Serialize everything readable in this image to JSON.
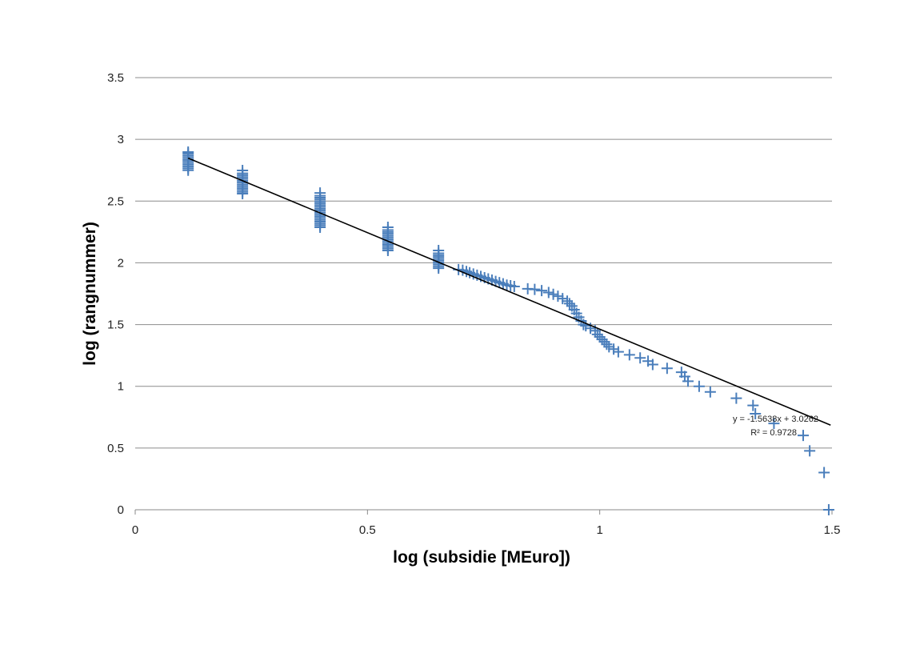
{
  "chart_data": {
    "type": "scatter",
    "title": "",
    "xlabel": "log (subsidie [MEuro])",
    "ylabel": "log (rangnummer)",
    "xlim": [
      0,
      1.5
    ],
    "ylim": [
      0,
      3.5
    ],
    "x_ticks": [
      "0",
      "0.5",
      "1",
      "1.5"
    ],
    "x_tick_values": [
      0,
      0.5,
      1,
      1.5
    ],
    "y_ticks": [
      "0",
      "0.5",
      "1",
      "1.5",
      "2",
      "2.5",
      "3",
      "3.5"
    ],
    "y_tick_values": [
      0,
      0.5,
      1,
      1.5,
      2,
      2.5,
      3,
      3.5
    ],
    "grid": "horizontal",
    "marker": "plus",
    "series_color": "#4a7ebb",
    "trendline_color": "#000000",
    "points": [
      [
        0.114,
        2.75
      ],
      [
        0.114,
        2.765
      ],
      [
        0.114,
        2.78
      ],
      [
        0.114,
        2.795
      ],
      [
        0.114,
        2.81
      ],
      [
        0.114,
        2.825
      ],
      [
        0.114,
        2.84
      ],
      [
        0.114,
        2.855
      ],
      [
        0.114,
        2.87
      ],
      [
        0.114,
        2.885
      ],
      [
        0.114,
        2.897
      ],
      [
        0.231,
        2.56
      ],
      [
        0.231,
        2.575
      ],
      [
        0.231,
        2.59
      ],
      [
        0.231,
        2.605
      ],
      [
        0.231,
        2.62
      ],
      [
        0.231,
        2.635
      ],
      [
        0.231,
        2.65
      ],
      [
        0.231,
        2.665
      ],
      [
        0.231,
        2.68
      ],
      [
        0.231,
        2.695
      ],
      [
        0.231,
        2.71
      ],
      [
        0.231,
        2.725
      ],
      [
        0.231,
        2.748
      ],
      [
        0.398,
        2.288
      ],
      [
        0.398,
        2.303
      ],
      [
        0.398,
        2.318
      ],
      [
        0.398,
        2.333
      ],
      [
        0.398,
        2.348
      ],
      [
        0.398,
        2.363
      ],
      [
        0.398,
        2.378
      ],
      [
        0.398,
        2.393
      ],
      [
        0.398,
        2.408
      ],
      [
        0.398,
        2.423
      ],
      [
        0.398,
        2.438
      ],
      [
        0.398,
        2.453
      ],
      [
        0.398,
        2.468
      ],
      [
        0.398,
        2.483
      ],
      [
        0.398,
        2.498
      ],
      [
        0.398,
        2.513
      ],
      [
        0.398,
        2.528
      ],
      [
        0.398,
        2.543
      ],
      [
        0.398,
        2.566
      ],
      [
        0.544,
        2.1
      ],
      [
        0.544,
        2.115
      ],
      [
        0.544,
        2.13
      ],
      [
        0.544,
        2.145
      ],
      [
        0.544,
        2.16
      ],
      [
        0.544,
        2.175
      ],
      [
        0.544,
        2.19
      ],
      [
        0.544,
        2.205
      ],
      [
        0.544,
        2.22
      ],
      [
        0.544,
        2.235
      ],
      [
        0.544,
        2.25
      ],
      [
        0.544,
        2.265
      ],
      [
        0.544,
        2.288
      ],
      [
        0.653,
        1.957
      ],
      [
        0.653,
        1.972
      ],
      [
        0.653,
        1.987
      ],
      [
        0.653,
        2.002
      ],
      [
        0.653,
        2.017
      ],
      [
        0.653,
        2.032
      ],
      [
        0.653,
        2.047
      ],
      [
        0.653,
        2.062
      ],
      [
        0.653,
        2.077
      ],
      [
        0.653,
        2.1
      ],
      [
        0.696,
        1.945
      ],
      [
        0.705,
        1.94
      ],
      [
        0.713,
        1.93
      ],
      [
        0.72,
        1.92
      ],
      [
        0.728,
        1.91
      ],
      [
        0.736,
        1.9
      ],
      [
        0.744,
        1.89
      ],
      [
        0.752,
        1.88
      ],
      [
        0.76,
        1.87
      ],
      [
        0.768,
        1.86
      ],
      [
        0.776,
        1.85
      ],
      [
        0.784,
        1.84
      ],
      [
        0.792,
        1.83
      ],
      [
        0.8,
        1.82
      ],
      [
        0.808,
        1.815
      ],
      [
        0.816,
        1.808
      ],
      [
        0.845,
        1.79
      ],
      [
        0.86,
        1.785
      ],
      [
        0.875,
        1.775
      ],
      [
        0.89,
        1.76
      ],
      [
        0.9,
        1.745
      ],
      [
        0.91,
        1.73
      ],
      [
        0.92,
        1.71
      ],
      [
        0.93,
        1.69
      ],
      [
        0.935,
        1.67
      ],
      [
        0.94,
        1.65
      ],
      [
        0.945,
        1.62
      ],
      [
        0.95,
        1.59
      ],
      [
        0.955,
        1.56
      ],
      [
        0.96,
        1.53
      ],
      [
        0.965,
        1.5
      ],
      [
        0.97,
        1.49
      ],
      [
        0.98,
        1.47
      ],
      [
        0.99,
        1.45
      ],
      [
        0.995,
        1.42
      ],
      [
        1.0,
        1.4
      ],
      [
        1.005,
        1.38
      ],
      [
        1.01,
        1.36
      ],
      [
        1.015,
        1.34
      ],
      [
        1.02,
        1.32
      ],
      [
        1.03,
        1.301
      ],
      [
        1.04,
        1.279
      ],
      [
        1.064,
        1.255
      ],
      [
        1.087,
        1.23
      ],
      [
        1.104,
        1.204
      ],
      [
        1.114,
        1.176
      ],
      [
        1.145,
        1.146
      ],
      [
        1.176,
        1.114
      ],
      [
        1.183,
        1.079
      ],
      [
        1.19,
        1.041
      ],
      [
        1.214,
        1.0
      ],
      [
        1.238,
        0.954
      ],
      [
        1.294,
        0.903
      ],
      [
        1.33,
        0.845
      ],
      [
        1.335,
        0.778
      ],
      [
        1.375,
        0.699
      ],
      [
        1.438,
        0.602
      ],
      [
        1.452,
        0.477
      ],
      [
        1.483,
        0.301
      ],
      [
        1.493,
        0.0
      ]
    ],
    "trendline": {
      "slope": -1.5638,
      "intercept": 3.0262,
      "x_range": [
        0.114,
        1.497
      ],
      "equation_label": "y = -1.5638x + 3.0262",
      "r2_label": "R² = 0.9728"
    }
  }
}
